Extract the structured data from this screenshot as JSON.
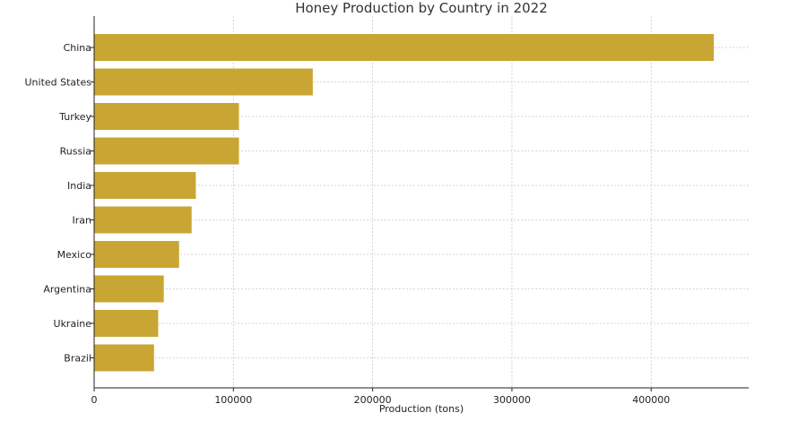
{
  "chart_data": {
    "type": "bar",
    "orientation": "horizontal",
    "title": "Honey Production by Country in 2022",
    "xlabel": "Production (tons)",
    "ylabel": "",
    "categories": [
      "China",
      "United States",
      "Turkey",
      "Russia",
      "India",
      "Iran",
      "Mexico",
      "Argentina",
      "Ukraine",
      "Brazil"
    ],
    "values": [
      445000,
      157000,
      104000,
      104000,
      73000,
      70000,
      61000,
      50000,
      46000,
      43000
    ],
    "xlim": [
      0,
      470000
    ],
    "xticks": [
      0,
      100000,
      200000,
      300000,
      400000
    ],
    "bar_color": "#c9a633",
    "grid": true
  }
}
